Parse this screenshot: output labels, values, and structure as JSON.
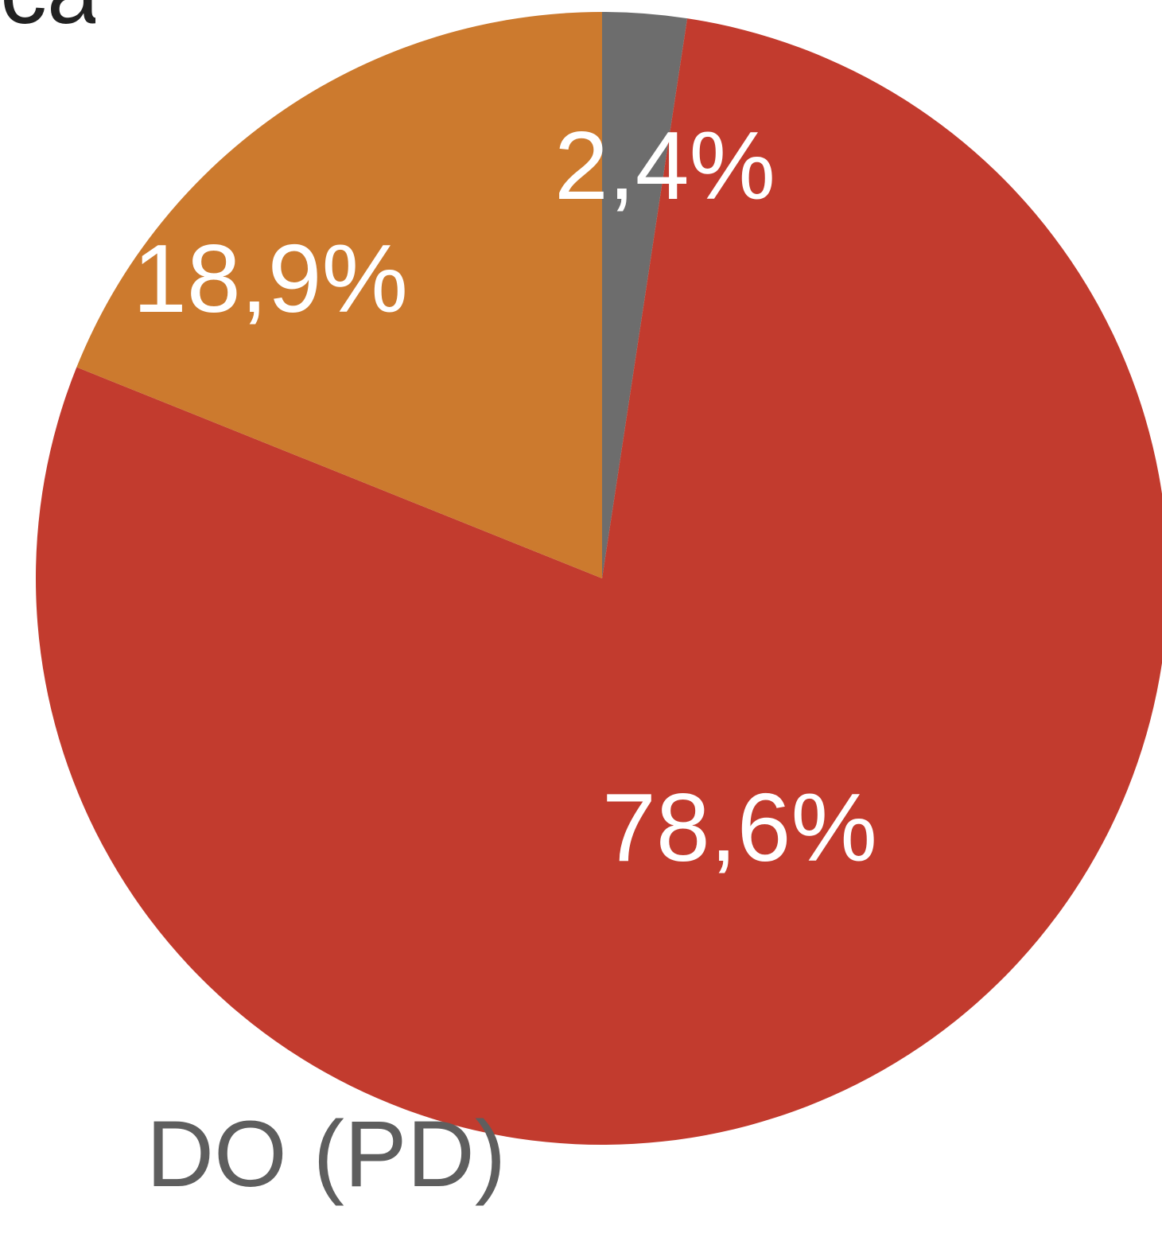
{
  "chart_data": {
    "type": "pie",
    "start_angle_deg": 0,
    "direction": "clockwise",
    "slices": [
      {
        "value": 2.4,
        "label": "2,4%",
        "color": "#6d6d6d"
      },
      {
        "value": 78.6,
        "label": "78,6%",
        "color": "#c23b2e"
      },
      {
        "value": 18.9,
        "label": "18,9%",
        "color": "#cc7a2e"
      }
    ],
    "caption": "DO (PD)",
    "top_fragment": "ca)"
  }
}
